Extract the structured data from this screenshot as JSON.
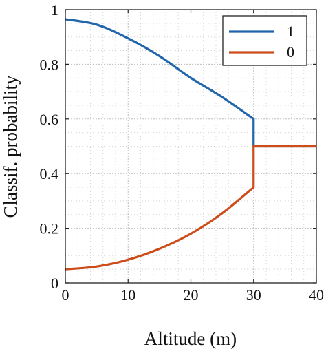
{
  "chart_data": {
    "type": "line",
    "title": "",
    "xlabel": "Altitude (m)",
    "ylabel": "Classif. probability",
    "xlim": [
      0,
      40
    ],
    "ylim": [
      0,
      1
    ],
    "xticks": [
      "0",
      "10",
      "20",
      "30",
      "40"
    ],
    "yticks": [
      "0",
      "0.2",
      "0.4",
      "0.6",
      "0.8",
      "1"
    ],
    "grid": true,
    "legend_position": "top-right",
    "series": [
      {
        "name": "1",
        "color": "#2166ac",
        "x": [
          0,
          5,
          10,
          15,
          20,
          25,
          30,
          30,
          40
        ],
        "y": [
          0.965,
          0.945,
          0.895,
          0.83,
          0.75,
          0.68,
          0.6,
          0.5,
          0.5
        ]
      },
      {
        "name": "0",
        "color": "#cc4c1a",
        "x": [
          0,
          5,
          10,
          15,
          20,
          25,
          30,
          30,
          40
        ],
        "y": [
          0.05,
          0.06,
          0.085,
          0.125,
          0.18,
          0.255,
          0.35,
          0.5,
          0.5
        ]
      }
    ]
  }
}
